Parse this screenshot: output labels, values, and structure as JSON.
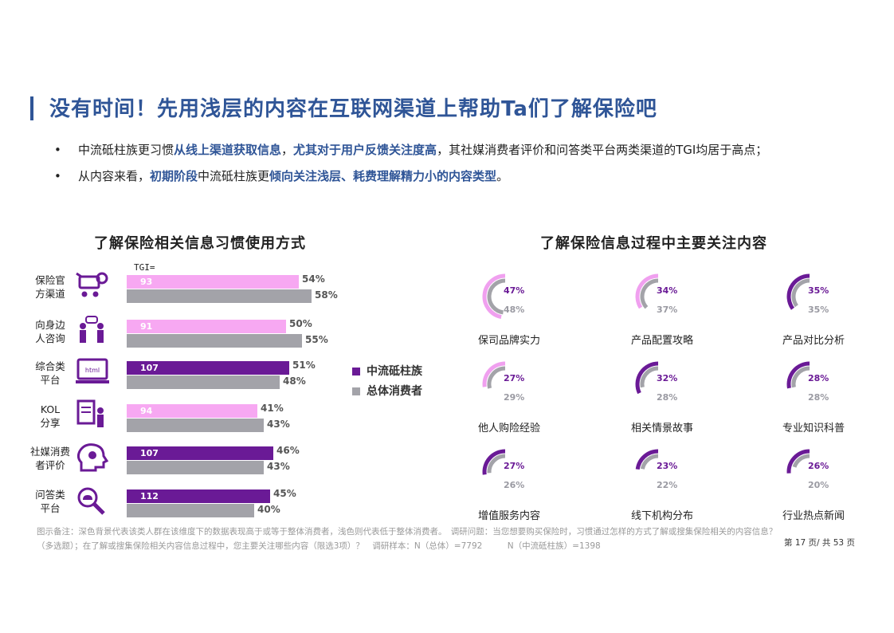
{
  "title": "没有时间！先用浅层的内容在互联网渠道上帮助Ta们了解保险吧",
  "bullets": [
    {
      "dot": "•",
      "p1": "中流砥柱族更习惯",
      "h1": "从线上渠道获取信息",
      "p2": "，",
      "h2": "尤其对于用户反馈关注度高",
      "p3": "，其社媒消费者评价和问答类平台两类渠道的TGI均居于高点；"
    },
    {
      "dot": "•",
      "p1": "从内容来看，",
      "h1": "初期阶段",
      "p2": "中流砥柱族更",
      "h2": "倾向关注浅层、耗费理解精力小的内容类型",
      "p3": "。"
    }
  ],
  "colors": {
    "accent": "#2f5597",
    "series_light": "#f7a8f2",
    "series_dark": "#6a1a96",
    "series_gray": "#a3a3a9"
  },
  "left_title": "了解保险相关信息习惯使用方式",
  "right_title": "了解保险信息过程中主要关注内容",
  "tgi_label": "TGI=",
  "legend": {
    "series1": "中流砥柱族",
    "series2": "总体消费者"
  },
  "row_labels": [
    [
      "保险官",
      "方渠道"
    ],
    [
      "向身边",
      "人咨询"
    ],
    [
      "综合类",
      "平台"
    ],
    [
      "KOL",
      "分享"
    ],
    [
      "社媒消费",
      "者评价"
    ],
    [
      "问答类",
      "平台"
    ]
  ],
  "icons": [
    "shopping-cart-gear-icon",
    "people-chat-icon",
    "laptop-html-icon",
    "document-person-icon",
    "head-lightbulb-icon",
    "magnifier-cloud-icon"
  ],
  "chart_data": [
    {
      "type": "bar",
      "orientation": "horizontal",
      "title": "了解保险相关信息习惯使用方式",
      "categories": [
        "保险官方渠道",
        "向身边人咨询",
        "综合类平台",
        "KOL分享",
        "社媒消费者评价",
        "问答类平台"
      ],
      "series": [
        {
          "name": "中流砥柱族",
          "values": [
            54,
            50,
            51,
            41,
            46,
            45
          ],
          "labels": [
            "54%",
            "50%",
            "51%",
            "41%",
            "46%",
            "45%"
          ]
        },
        {
          "name": "总体消费者",
          "values": [
            58,
            55,
            48,
            43,
            43,
            40
          ],
          "labels": [
            "58%",
            "55%",
            "48%",
            "43%",
            "43%",
            "40%"
          ]
        }
      ],
      "tgi": [
        93,
        91,
        107,
        94,
        107,
        112
      ],
      "tgi_labels": [
        "93",
        "91",
        "107",
        "94",
        "107",
        "112"
      ],
      "legend_position": "right"
    },
    {
      "type": "radial",
      "title": "了解保险信息过程中主要关注内容",
      "categories": [
        "保司品牌实力",
        "产品配置攻略",
        "产品对比分析",
        "他人购险经验",
        "相关情景故事",
        "专业知识科普",
        "增值服务内容",
        "线下机构分布",
        "行业热点新闻"
      ],
      "series": [
        {
          "name": "中流砥柱族",
          "values": [
            47,
            34,
            35,
            27,
            32,
            28,
            27,
            23,
            26
          ],
          "labels": [
            "47%",
            "34%",
            "35%",
            "27%",
            "32%",
            "28%",
            "27%",
            "23%",
            "26%"
          ]
        },
        {
          "name": "总体消费者",
          "values": [
            48,
            37,
            35,
            29,
            28,
            28,
            26,
            22,
            20
          ],
          "labels": [
            "48%",
            "37%",
            "35%",
            "29%",
            "28%",
            "28%",
            "26%",
            "22%",
            "20%"
          ]
        }
      ]
    }
  ],
  "footnote": "图示备注：深色背景代表该类人群在该维度下的数据表现高于或等于整体消费者，浅色则代表低于整体消费者。　调研问题：当您想要购买保险时，习惯通过怎样的方式了解或搜集保险相关的内容信息？（多选题）；在了解或搜集保险相关内容信息过程中，您主要关注哪些内容（限选3项）？　调研样本：N（总体）=7792　　　N（中流砥柱族）=1398",
  "page_number": "第 17 页/ 共 53 页"
}
